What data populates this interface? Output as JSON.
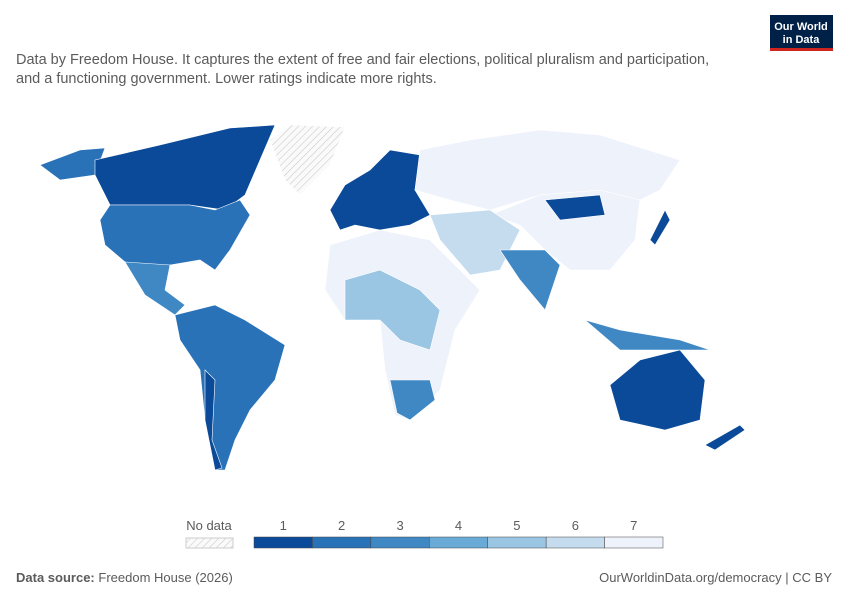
{
  "logo": [
    "Our World",
    "in Data"
  ],
  "subtitle": [
    "Data by Freedom House. It captures the extent of free and fair elections, political pluralism and participation,",
    "and a functioning government. Lower ratings indicate more rights."
  ],
  "legend": {
    "no_data": "No data",
    "bins": [
      {
        "label": 1,
        "color": "#0b4a99"
      },
      {
        "label": 2,
        "color": "#2a72b8"
      },
      {
        "label": 3,
        "color": "#3f88c4"
      },
      {
        "label": 4,
        "color": "#6aaad6"
      },
      {
        "label": 5,
        "color": "#9ac6e3"
      },
      {
        "label": 6,
        "color": "#c5dcef"
      },
      {
        "label": 7,
        "color": "#eef2fb"
      }
    ]
  },
  "footer": {
    "source_label": "Data source:",
    "source": "Freedom House (2026)",
    "url": "OurWorldinData.org/democracy | CC BY"
  }
}
